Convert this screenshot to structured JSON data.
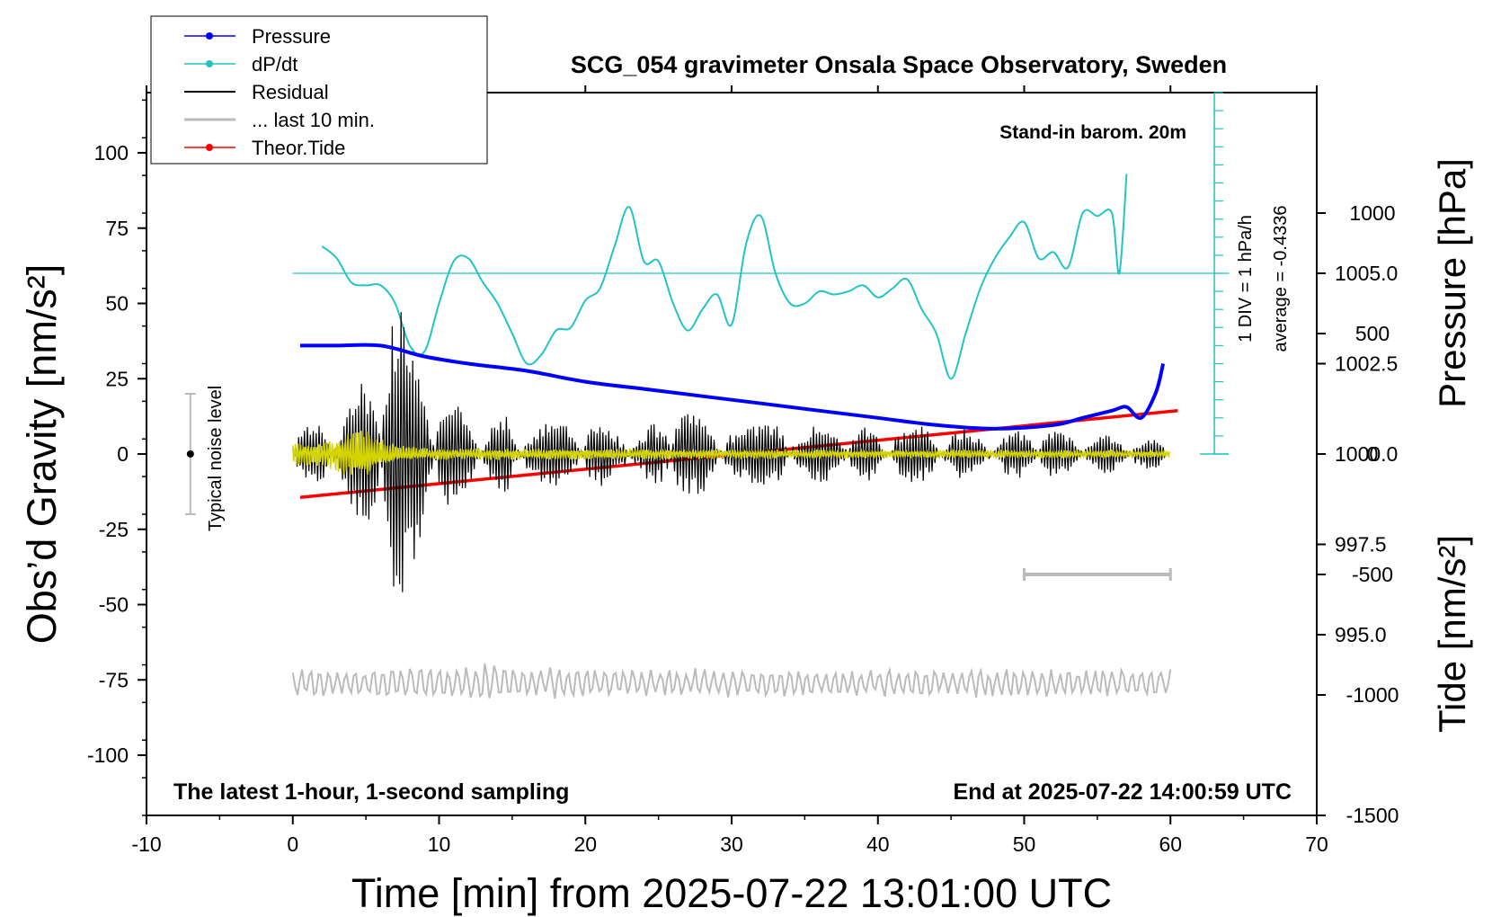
{
  "chart_data": {
    "type": "line",
    "title": "SCG_054 gravimeter Onsala Space Observatory, Sweden",
    "xlabel": "Time [min] from 2025-07-22 13:01:00 UTC",
    "ylabel_left": "Obs’d Gravity [nm/s²]",
    "ylabel_right_pressure": "Pressure [hPa]",
    "ylabel_right_tide": "Tide [nm/s²]",
    "x_range": [
      -10,
      70
    ],
    "y_range": [
      -120,
      120
    ],
    "x_ticks": [
      "-10",
      "0",
      "10",
      "20",
      "30",
      "40",
      "50",
      "60",
      "70"
    ],
    "y_ticks": [
      "100",
      "75",
      "50",
      "25",
      "0",
      "-25",
      "-50",
      "-75",
      "-100"
    ],
    "pressure_ticks": [
      "1005.0",
      "1002.5",
      "1000.0",
      "997.5",
      "995.0"
    ],
    "tide_ticks": [
      "1000",
      "500",
      "0",
      "-500",
      "-1000",
      "-1500"
    ],
    "pressure_range": [
      990,
      1010
    ],
    "tide_range": [
      -1500,
      1500
    ],
    "annotations": {
      "barometer": "Stand-in barom. 20m",
      "div_label": "1 DIV = 1 hPa/h",
      "average_label": "average = -0.4336",
      "noise_label": "Typical noise level",
      "bottom_left": "The latest 1-hour, 1-second sampling",
      "bottom_right": "End at 2025-07-22 14:00:59 UTC"
    },
    "legend": [
      {
        "label": "Pressure",
        "color": "#0000ff",
        "marker": true
      },
      {
        "label": "dP/dt",
        "color": "#22c4c4",
        "marker": true
      },
      {
        "label": "Residual",
        "color": "#000000",
        "marker": false
      },
      {
        "label": "... last 10 min.",
        "color": "#bbbbbb",
        "marker": false
      },
      {
        "label": "Theor.Tide",
        "color": "#ff0000",
        "marker": true
      }
    ],
    "series": [
      {
        "name": "Pressure",
        "axis": "pressure",
        "color": "#0000ff",
        "x": [
          0.5,
          3,
          6,
          9,
          12,
          16,
          20,
          24,
          28,
          32,
          36,
          40,
          44,
          48,
          52,
          54,
          56,
          57,
          58,
          59,
          59.5
        ],
        "values": [
          1003.0,
          1003.0,
          1003.0,
          1002.7,
          1002.5,
          1002.3,
          1002.0,
          1001.8,
          1001.6,
          1001.4,
          1001.2,
          1001.0,
          1000.8,
          1000.7,
          1000.8,
          1001.0,
          1001.2,
          1001.3,
          1001.0,
          1001.7,
          1002.5
        ]
      },
      {
        "name": "dP/dt",
        "axis": "gravity",
        "color": "#22c4c4",
        "x": [
          2,
          3,
          4,
          5,
          6,
          7,
          8,
          9,
          10,
          11,
          12,
          13,
          14,
          15,
          16,
          17,
          18,
          19,
          20,
          21,
          22,
          23,
          24,
          25,
          26,
          27,
          28,
          29,
          30,
          31,
          32,
          33,
          34,
          35,
          36,
          37,
          38,
          39,
          40,
          41,
          42,
          43,
          44,
          45,
          46,
          47,
          48,
          49,
          50,
          51,
          52,
          53,
          54,
          55,
          56,
          56.5,
          57
        ],
        "values": [
          69,
          65,
          57,
          56,
          56,
          50,
          36,
          34,
          50,
          64,
          65,
          57,
          50,
          40,
          30,
          33,
          41,
          42,
          51,
          55,
          69,
          82,
          64,
          64,
          50,
          41,
          48,
          53,
          43,
          70,
          79,
          60,
          50,
          50,
          54,
          53,
          54,
          56,
          52,
          55,
          58,
          48,
          40,
          25,
          40,
          55,
          65,
          72,
          77,
          65,
          67,
          62,
          80,
          79,
          80,
          60,
          93
        ]
      },
      {
        "name": "dP/dt zero (average)",
        "axis": "gravity",
        "color": "#22c4c4",
        "x": [
          0,
          64
        ],
        "values": [
          60,
          60
        ]
      },
      {
        "name": "Residual",
        "axis": "gravity",
        "color": "#000000",
        "kind": "oscillation",
        "x_start": 0,
        "x_end": 60,
        "center": 0,
        "env_x": [
          0,
          3,
          5,
          6,
          6.5,
          7,
          7.5,
          8,
          9,
          10,
          11,
          12,
          14,
          16,
          20,
          25,
          26,
          27,
          30,
          35,
          40,
          45,
          50,
          55,
          60
        ],
        "env_a": [
          10,
          14,
          26,
          38,
          50,
          48,
          48,
          42,
          30,
          22,
          18,
          16,
          14,
          12,
          11,
          11,
          22,
          14,
          11,
          11,
          10,
          9,
          8,
          7,
          5
        ]
      },
      {
        "name": "Residual (filtered)",
        "axis": "gravity",
        "color": "#d4d400",
        "kind": "oscillation",
        "x_start": 0,
        "x_end": 60,
        "center": 0,
        "env_x": [
          0,
          3,
          4,
          5,
          6,
          7,
          10,
          20,
          40,
          60
        ],
        "env_a": [
          4,
          6,
          9,
          9,
          6,
          3,
          2,
          2,
          1.5,
          1.5
        ]
      },
      {
        "name": "... last 10 min.",
        "axis": "gravity",
        "color": "#bbbbbb",
        "kind": "oscillation",
        "x_start": 0,
        "x_end": 60,
        "center": -76,
        "env_x": [
          0,
          12,
          13,
          14,
          20,
          60
        ],
        "env_a": [
          5,
          6,
          9,
          6,
          5,
          5
        ]
      },
      {
        "name": "Theor.Tide",
        "axis": "tide",
        "color": "#ff0000",
        "x": [
          0.5,
          60.5
        ],
        "values": [
          -180,
          180
        ]
      },
      {
        "name": "10-min marker",
        "axis": "gravity",
        "color": "#bbbbbb",
        "x": [
          50,
          60
        ],
        "values": [
          -40,
          -40
        ]
      }
    ],
    "noise_bar": {
      "x": -7,
      "from": -20,
      "to": 20
    },
    "dpdt_scale_axis": {
      "x": 63,
      "from": 0,
      "to": 120,
      "step": 6
    }
  }
}
